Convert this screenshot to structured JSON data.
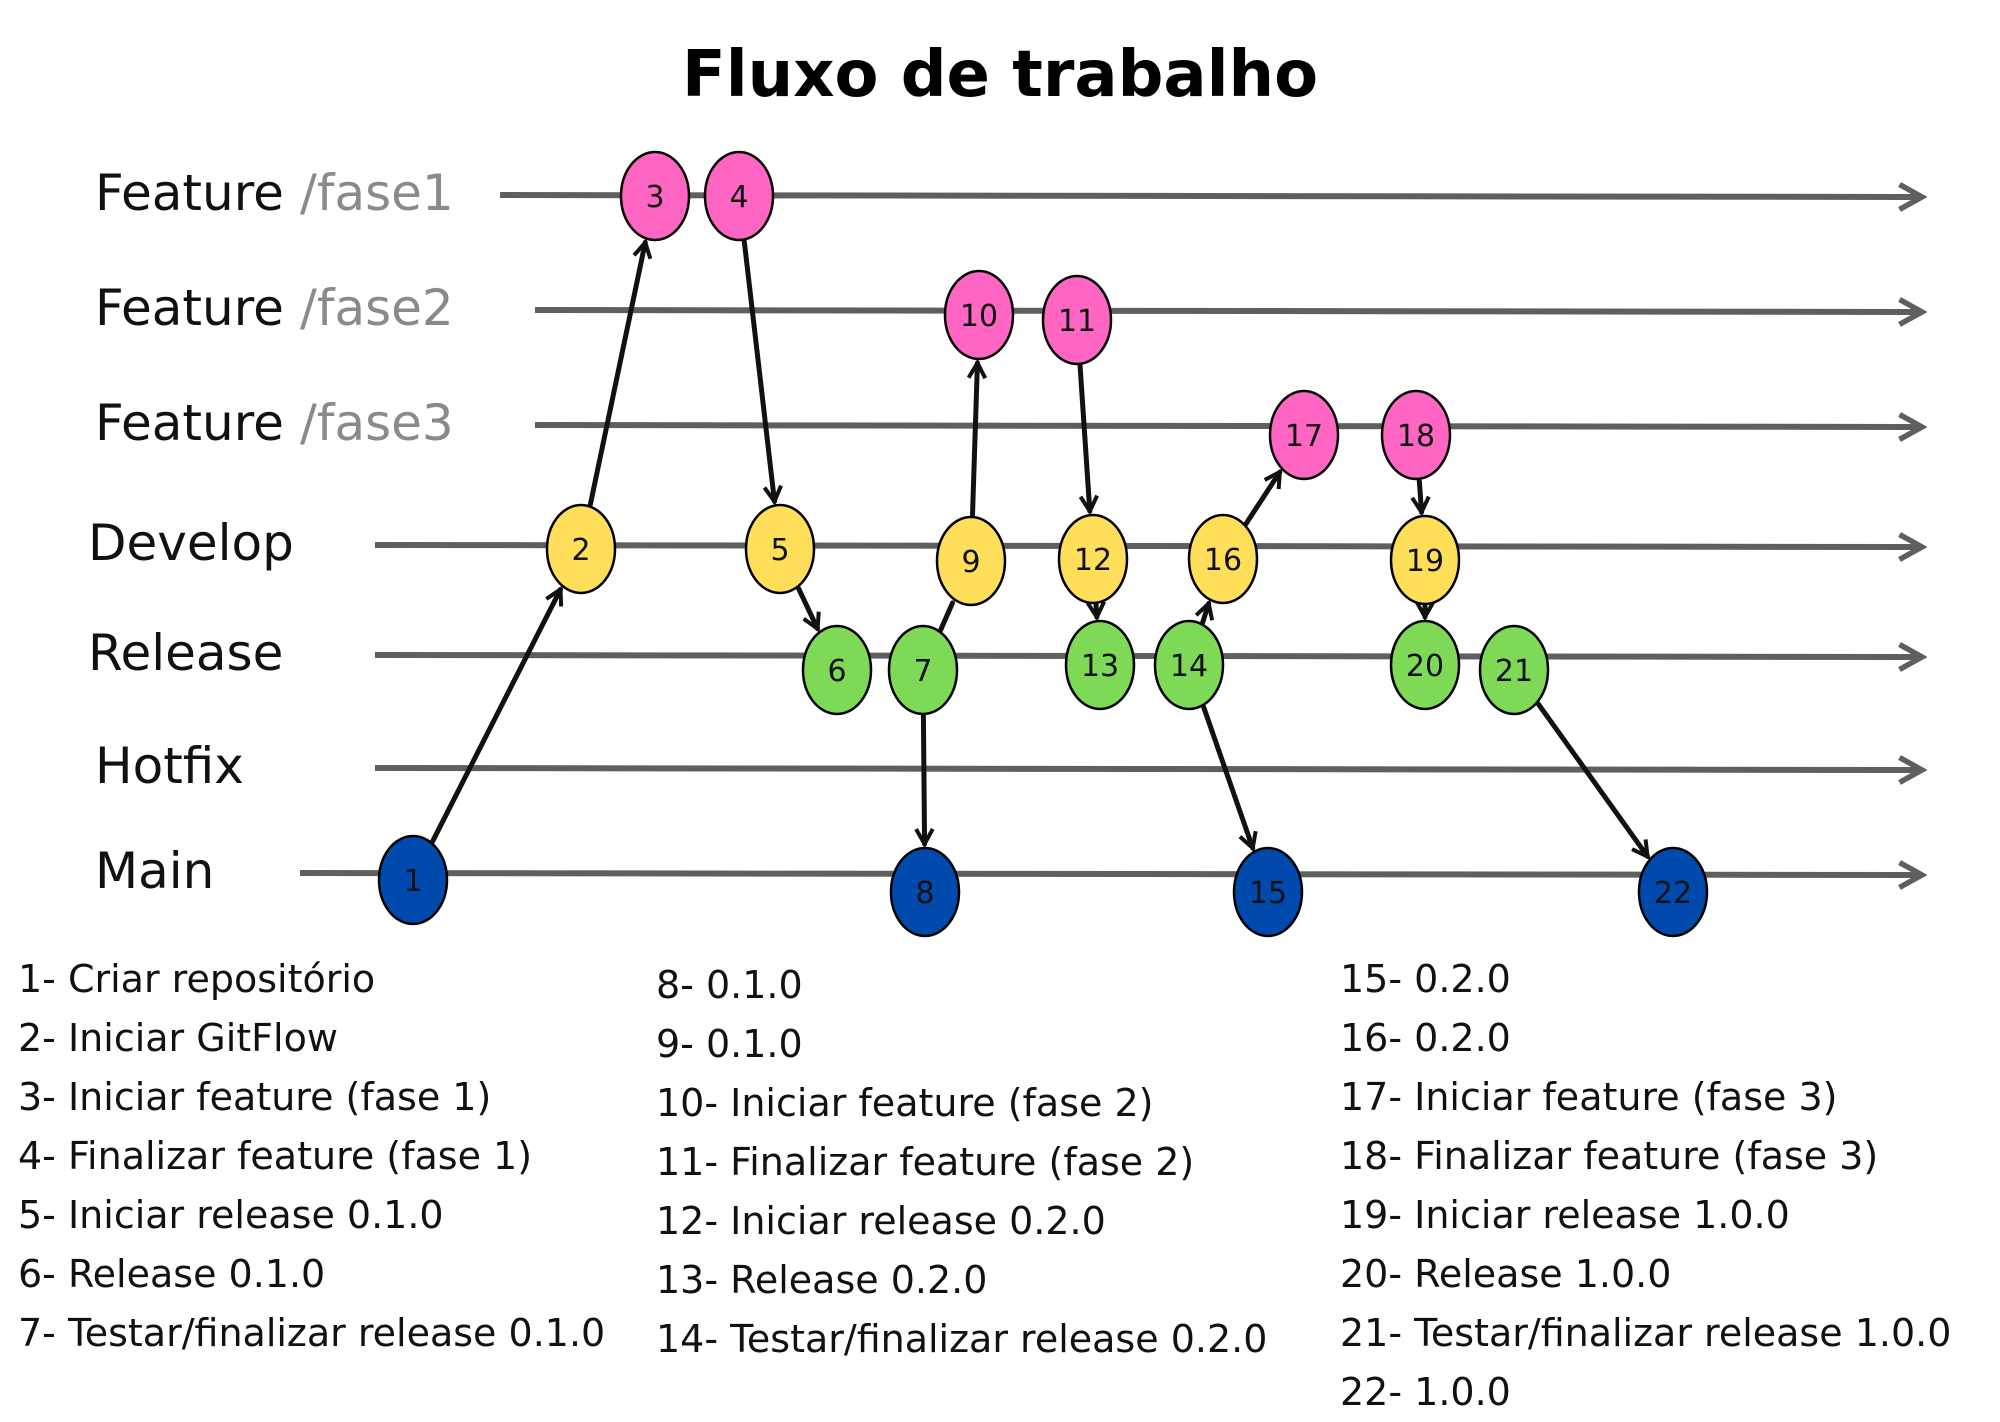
{
  "title": "Fluxo de trabalho",
  "colors": {
    "lane": "#5f5f5f",
    "arrow": "#111111",
    "node_outline": "#000000",
    "feature": "#ff66c4",
    "develop": "#ffde59",
    "release": "#7ed957",
    "main": "#004aad"
  },
  "lanes": [
    {
      "id": "feature1",
      "label": "Feature",
      "sublabel": "/fase1"
    },
    {
      "id": "feature2",
      "label": "Feature",
      "sublabel": "/fase2"
    },
    {
      "id": "feature3",
      "label": "Feature",
      "sublabel": "/fase3"
    },
    {
      "id": "develop",
      "label": "Develop",
      "sublabel": ""
    },
    {
      "id": "release",
      "label": "Release",
      "sublabel": ""
    },
    {
      "id": "hotfix",
      "label": "Hotfix",
      "sublabel": ""
    },
    {
      "id": "main",
      "label": "Main",
      "sublabel": ""
    }
  ],
  "nodes": [
    {
      "id": "1",
      "label": "1",
      "lane": "main"
    },
    {
      "id": "2",
      "label": "2",
      "lane": "develop"
    },
    {
      "id": "3",
      "label": "3",
      "lane": "feature1"
    },
    {
      "id": "4",
      "label": "4",
      "lane": "feature1"
    },
    {
      "id": "5",
      "label": "5",
      "lane": "develop"
    },
    {
      "id": "6",
      "label": "6",
      "lane": "release"
    },
    {
      "id": "7",
      "label": "7",
      "lane": "release"
    },
    {
      "id": "8",
      "label": "8",
      "lane": "main"
    },
    {
      "id": "9",
      "label": "9",
      "lane": "develop"
    },
    {
      "id": "10",
      "label": "10",
      "lane": "feature2"
    },
    {
      "id": "11",
      "label": "11",
      "lane": "feature2"
    },
    {
      "id": "12",
      "label": "12",
      "lane": "develop"
    },
    {
      "id": "13",
      "label": "13",
      "lane": "release"
    },
    {
      "id": "14",
      "label": "14",
      "lane": "release"
    },
    {
      "id": "15",
      "label": "15",
      "lane": "main"
    },
    {
      "id": "16",
      "label": "16",
      "lane": "develop"
    },
    {
      "id": "17",
      "label": "17",
      "lane": "feature3"
    },
    {
      "id": "18",
      "label": "18",
      "lane": "feature3"
    },
    {
      "id": "19",
      "label": "19",
      "lane": "develop"
    },
    {
      "id": "20",
      "label": "20",
      "lane": "release"
    },
    {
      "id": "21",
      "label": "21",
      "lane": "release"
    },
    {
      "id": "22",
      "label": "22",
      "lane": "main"
    }
  ],
  "edges": [
    {
      "from": "1",
      "to": "2",
      "arrow": true
    },
    {
      "from": "2",
      "to": "3",
      "arrow": true
    },
    {
      "from": "4",
      "to": "5",
      "arrow": true
    },
    {
      "from": "5",
      "to": "6",
      "arrow": true
    },
    {
      "from": "7",
      "to": "9",
      "arrow": false
    },
    {
      "from": "7",
      "to": "8",
      "arrow": true
    },
    {
      "from": "9",
      "to": "10",
      "arrow": true
    },
    {
      "from": "11",
      "to": "12",
      "arrow": true
    },
    {
      "from": "12",
      "to": "13",
      "arrow": true
    },
    {
      "from": "14",
      "to": "16",
      "arrow": true
    },
    {
      "from": "16",
      "to": "17",
      "arrow": true
    },
    {
      "from": "14",
      "to": "15",
      "arrow": true
    },
    {
      "from": "18",
      "to": "19",
      "arrow": true
    },
    {
      "from": "19",
      "to": "20",
      "arrow": true
    },
    {
      "from": "21",
      "to": "22",
      "arrow": true
    }
  ],
  "legend": {
    "col1": [
      "1- Criar repositório",
      "2- Iniciar GitFlow",
      "3- Iniciar feature (fase 1)",
      "4- Finalizar feature (fase 1)",
      "5- Iniciar release 0.1.0",
      "6- Release 0.1.0",
      "7- Testar/finalizar release 0.1.0"
    ],
    "col2": [
      "8- 0.1.0",
      "9- 0.1.0",
      "10- Iniciar feature (fase 2)",
      "11- Finalizar feature (fase 2)",
      "12- Iniciar release 0.2.0",
      "13- Release 0.2.0",
      "14- Testar/finalizar release 0.2.0"
    ],
    "col3": [
      "15- 0.2.0",
      "16- 0.2.0",
      "17- Iniciar feature (fase 3)",
      "18- Finalizar feature (fase 3)",
      "19- Iniciar release 1.0.0",
      "20- Release 1.0.0",
      "21- Testar/finalizar release 1.0.0",
      "22- 1.0.0"
    ]
  }
}
